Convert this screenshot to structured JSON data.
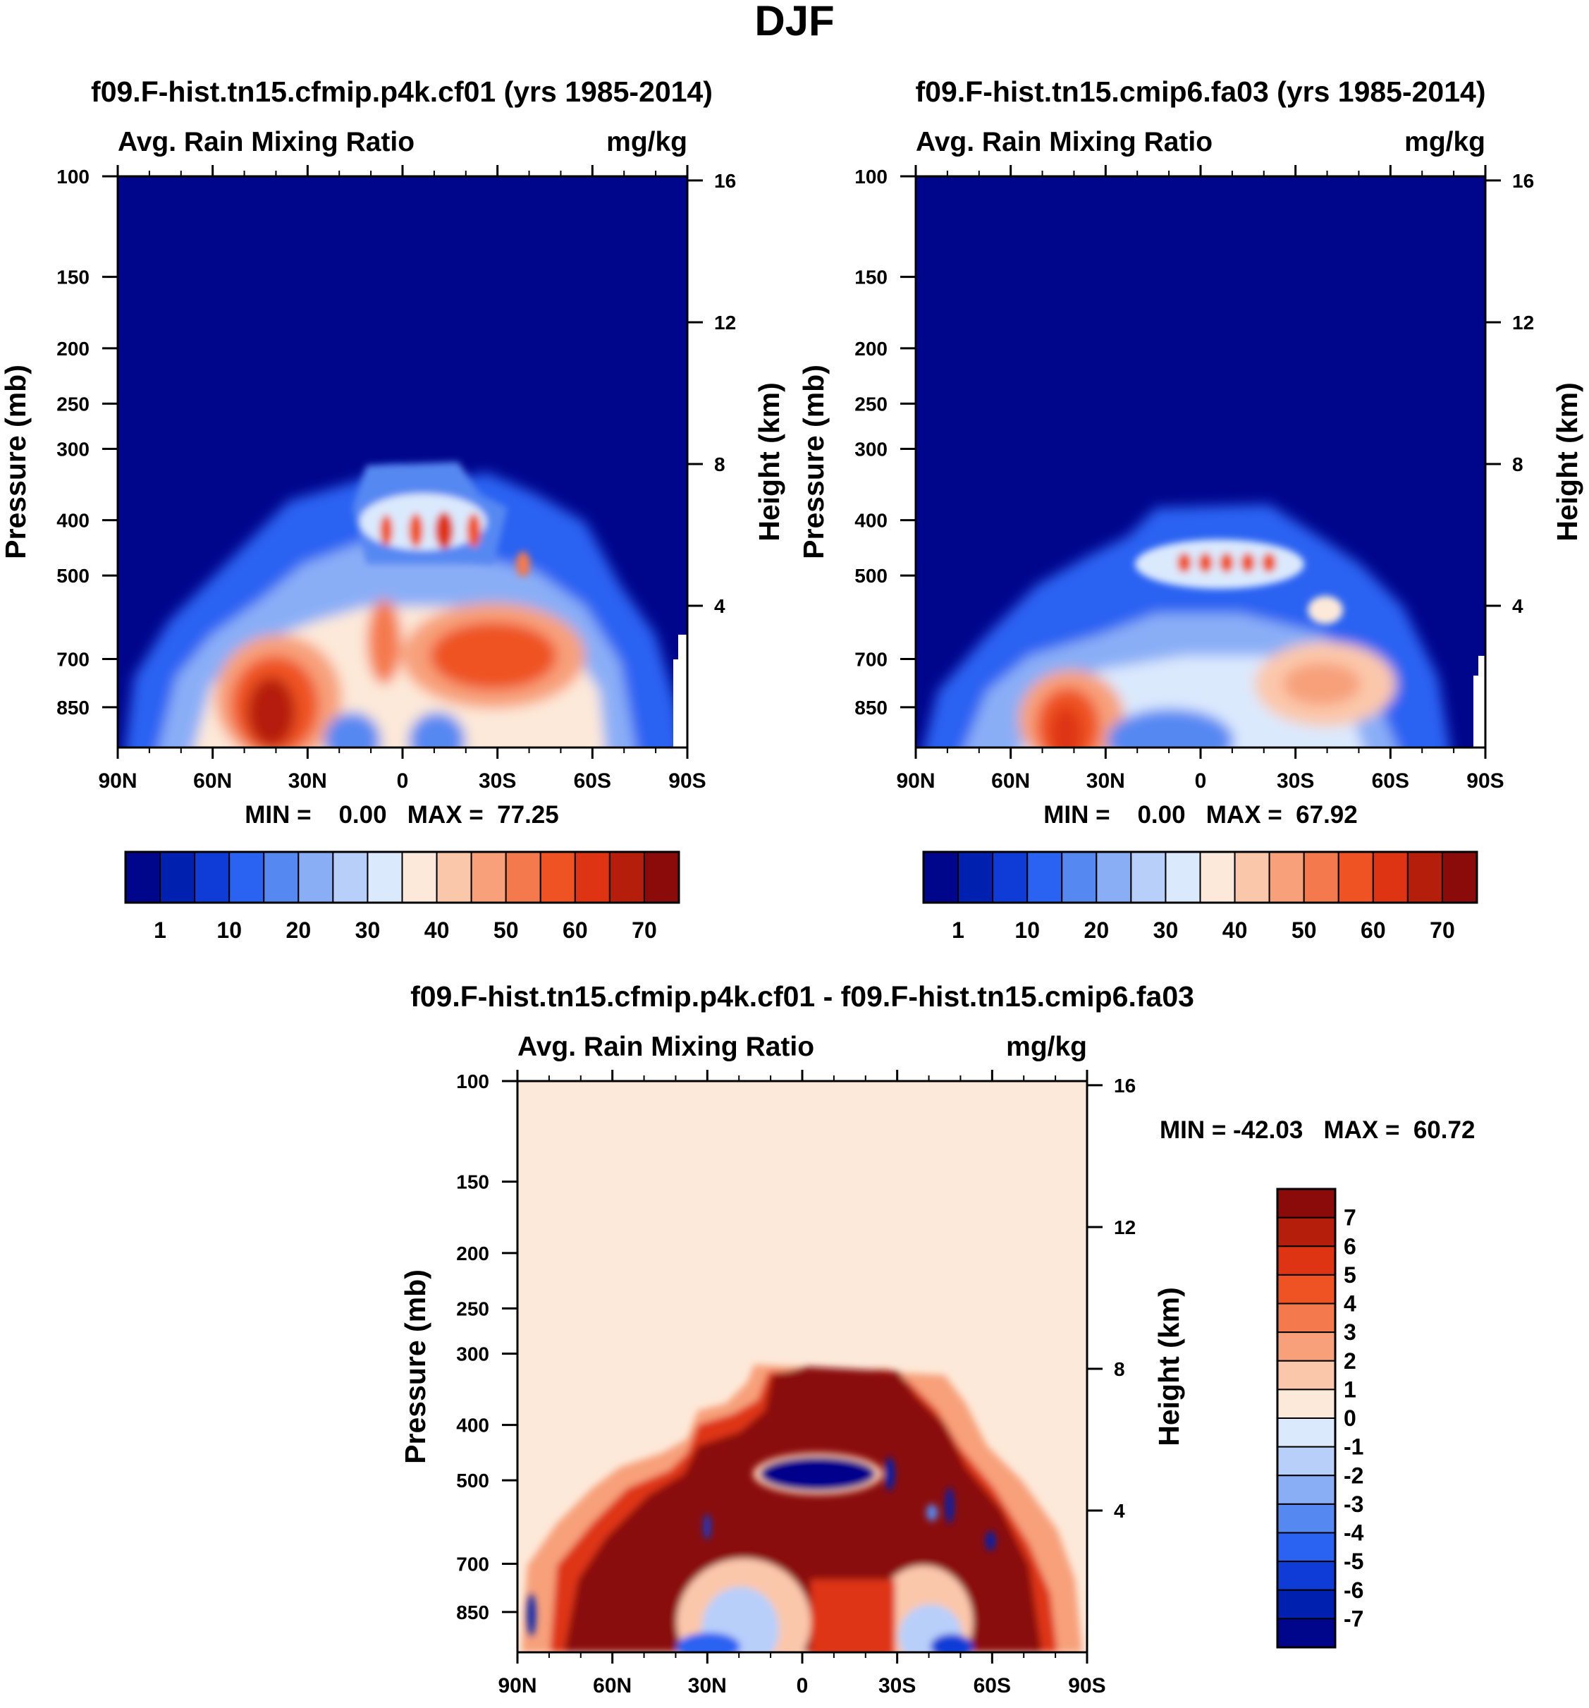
{
  "figure": {
    "title": "DJF",
    "colors": {
      "abs_levels": [
        "#00068c",
        "#0021b0",
        "#0f3cd6",
        "#2a62f2",
        "#5688f2",
        "#8aaef6",
        "#b8cffa",
        "#dbe9fd",
        "#fde9d9",
        "#fbc7ab",
        "#f7a07a",
        "#f47a4e",
        "#ef5323",
        "#de3414",
        "#b51e0b",
        "#8a0b0a"
      ],
      "diff_levels": [
        "#00068c",
        "#0021b0",
        "#0f3cd6",
        "#2a62f2",
        "#5688f2",
        "#8aaef6",
        "#b8cffa",
        "#dbe9fd",
        "#fde9d9",
        "#fbc7ab",
        "#f7a07a",
        "#f47a4e",
        "#ef5323",
        "#de3414",
        "#b51e0b",
        "#8a0b0a"
      ],
      "background_abs": "#00068c",
      "background_diff": "#fde9d9"
    }
  },
  "chart_data": [
    {
      "type": "heatmap",
      "id": "panel1",
      "title": "f09.F-hist.tn15.cfmip.p4k.cf01 (yrs 1985-2014)",
      "left_subtitle": "Avg. Rain Mixing Ratio",
      "right_subtitle": "mg/kg",
      "ylabel": "Pressure (mb)",
      "y2label": "Height (km)",
      "xticks": [
        "90N",
        "60N",
        "30N",
        "0",
        "30S",
        "60S",
        "90S"
      ],
      "yticks": [
        "100",
        "150",
        "200",
        "250",
        "300",
        "400",
        "500",
        "700",
        "850"
      ],
      "y2ticks": [
        "16",
        "12",
        "8",
        "4"
      ],
      "minmax": "MIN =    0.00   MAX =  77.25",
      "colorbar": {
        "orientation": "horizontal",
        "labels": [
          "1",
          "10",
          "20",
          "30",
          "40",
          "50",
          "60",
          "70"
        ]
      },
      "features": [
        {
          "lat": 36,
          "p": 820,
          "value": 77.25
        },
        {
          "lat": 6,
          "p": 620,
          "value": 50
        },
        {
          "lat": -28,
          "p": 640,
          "value": 62
        },
        {
          "lat": -12,
          "p": 400,
          "value": 65
        },
        {
          "lat": -38,
          "p": 450,
          "value": 55
        }
      ]
    },
    {
      "type": "heatmap",
      "id": "panel2",
      "title": "f09.F-hist.tn15.cmip6.fa03 (yrs 1985-2014)",
      "left_subtitle": "Avg. Rain Mixing Ratio",
      "right_subtitle": "mg/kg",
      "ylabel": "Pressure (mb)",
      "y2label": "Height (km)",
      "xticks": [
        "90N",
        "60N",
        "30N",
        "0",
        "30S",
        "60S",
        "90S"
      ],
      "yticks": [
        "100",
        "150",
        "200",
        "250",
        "300",
        "400",
        "500",
        "700",
        "850"
      ],
      "y2ticks": [
        "16",
        "12",
        "8",
        "4"
      ],
      "minmax": "MIN =    0.00   MAX =  67.92",
      "colorbar": {
        "orientation": "horizontal",
        "labels": [
          "1",
          "10",
          "20",
          "30",
          "40",
          "50",
          "60",
          "70"
        ]
      },
      "features": [
        {
          "lat": 38,
          "p": 850,
          "value": 67.92
        },
        {
          "lat": -35,
          "p": 690,
          "value": 50
        },
        {
          "lat": -8,
          "p": 450,
          "value": 55
        }
      ]
    },
    {
      "type": "heatmap",
      "id": "panel3",
      "title": "f09.F-hist.tn15.cfmip.p4k.cf01 - f09.F-hist.tn15.cmip6.fa03",
      "left_subtitle": "Avg. Rain Mixing Ratio",
      "right_subtitle": "mg/kg",
      "ylabel": "Pressure (mb)",
      "y2label": "Height (km)",
      "xticks": [
        "90N",
        "60N",
        "30N",
        "0",
        "30S",
        "60S",
        "90S"
      ],
      "yticks": [
        "100",
        "150",
        "200",
        "250",
        "300",
        "400",
        "500",
        "700",
        "850"
      ],
      "y2ticks": [
        "16",
        "12",
        "8",
        "4"
      ],
      "minmax": "MIN = -42.03   MAX =  60.72",
      "colorbar": {
        "orientation": "vertical",
        "labels": [
          "7",
          "6",
          "5",
          "4",
          "3",
          "2",
          "1",
          "0",
          "-1",
          "-2",
          "-3",
          "-4",
          "-5",
          "-6",
          "-7"
        ]
      },
      "features": [
        {
          "lat": 0,
          "p": 460,
          "value": -42.03
        },
        {
          "lat": 3,
          "p": 650,
          "value": 60.72
        }
      ]
    }
  ]
}
